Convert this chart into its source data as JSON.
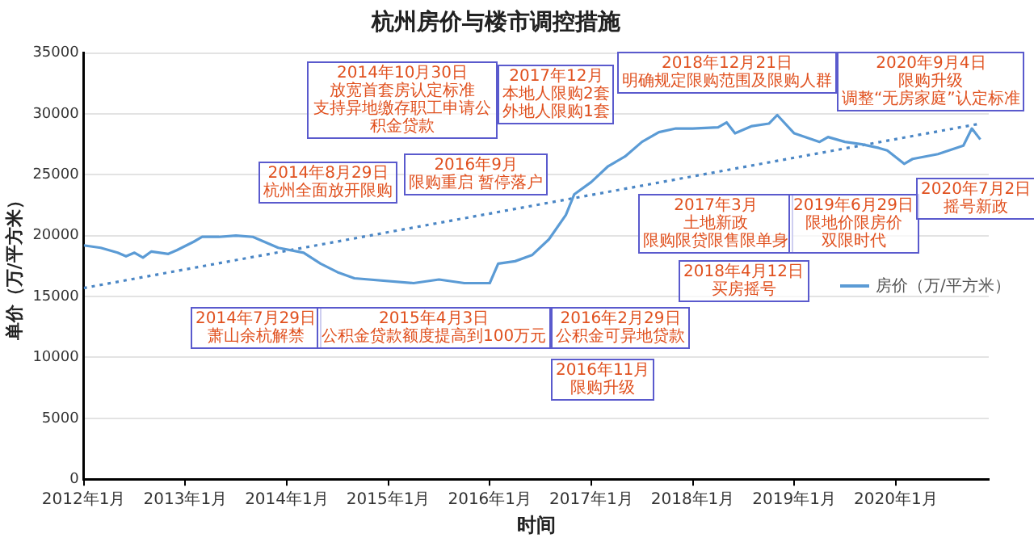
{
  "chart_data": {
    "type": "line",
    "title": "杭州房价与楼市调控措施",
    "xlabel": "时间",
    "ylabel": "单价（万/平方米）",
    "xlim": [
      "2012-01",
      "2020-12"
    ],
    "xticks": [
      {
        "value": "2012-01",
        "label": "2012年1月"
      },
      {
        "value": "2013-01",
        "label": "2013年1月"
      },
      {
        "value": "2014-01",
        "label": "2014年1月"
      },
      {
        "value": "2015-01",
        "label": "2015年1月"
      },
      {
        "value": "2016-01",
        "label": "2016年1月"
      },
      {
        "value": "2017-01",
        "label": "2017年1月"
      },
      {
        "value": "2018-01",
        "label": "2018年1月"
      },
      {
        "value": "2019-01",
        "label": "2019年1月"
      },
      {
        "value": "2020-01",
        "label": "2020年1月"
      }
    ],
    "ylim": [
      0,
      35000
    ],
    "yticks": [
      0,
      5000,
      10000,
      15000,
      20000,
      25000,
      30000,
      35000
    ],
    "grid": "y",
    "legend": "right",
    "marker": "none",
    "line_style": "solid",
    "series": [
      {
        "name": "房价（万/平方米）",
        "color": "#5b9bd5",
        "x": [
          "2012-01",
          "2012-03",
          "2012-05",
          "2012-06",
          "2012-07",
          "2012-08",
          "2012-09",
          "2012-11",
          "2012-12",
          "2013-02",
          "2013-03",
          "2013-05",
          "2013-07",
          "2013-09",
          "2013-12",
          "2014-03",
          "2014-05",
          "2014-07",
          "2014-09",
          "2015-04",
          "2015-07",
          "2015-10",
          "2016-01",
          "2016-02",
          "2016-04",
          "2016-06",
          "2016-08",
          "2016-10",
          "2016-11",
          "2017-01",
          "2017-03",
          "2017-05",
          "2017-07",
          "2017-09",
          "2017-11",
          "2018-01",
          "2018-04",
          "2018-05",
          "2018-06",
          "2018-08",
          "2018-10",
          "2018-11",
          "2019-01",
          "2019-04",
          "2019-05",
          "2019-07",
          "2019-09",
          "2019-11",
          "2019-12",
          "2020-02",
          "2020-03",
          "2020-06",
          "2020-09",
          "2020-10",
          "2020-11"
        ],
        "values": [
          19200,
          19000,
          18600,
          18300,
          18600,
          18200,
          18700,
          18500,
          18800,
          19500,
          19900,
          19900,
          20000,
          19900,
          19000,
          18600,
          17700,
          17000,
          16500,
          16100,
          16400,
          16100,
          16100,
          17700,
          17900,
          18400,
          19700,
          21700,
          23400,
          24400,
          25700,
          26500,
          27700,
          28500,
          28800,
          28800,
          28900,
          29300,
          28400,
          29000,
          29200,
          29900,
          28400,
          27700,
          28100,
          27700,
          27500,
          27200,
          27000,
          25900,
          26300,
          26700,
          27400,
          28800,
          27900
        ]
      },
      {
        "type": "line",
        "color": "#4a86c5",
        "line_style": "dotted",
        "x": [
          "2012-01",
          "2020-11"
        ],
        "values": [
          15700,
          29200
        ]
      }
    ],
    "annotations": [
      "2014年8月29日",
      "杭州全面放开限购",
      "2014年10月30日",
      "放宽首套房认定标准",
      "支持异地缴存职工申请公积金贷款",
      "2014年7月29日",
      "萧山余杭解禁",
      "2015年4月3日",
      "公积金贷款额度提高到100万元",
      "2016年2月29日",
      "公积金可异地贷款",
      "2016年9月",
      "限购重启 暂停落户",
      "2016年11月",
      "限购升级",
      "2017年3月",
      "土地新政",
      "限购限贷限售限单身",
      "2017年12月",
      "本地人限购2套",
      "外地人限购1套",
      "2018年4月12日",
      "买房摇号",
      "2018年12月21日",
      "明确规定限购范围及限购人群",
      "2019年6月29日",
      "限地价限房价",
      "双限时代",
      "2020年7月2日",
      "摇号新政",
      "2020年9月4日",
      "限购升级",
      "调整“无房家庭”认定标准"
    ]
  }
}
